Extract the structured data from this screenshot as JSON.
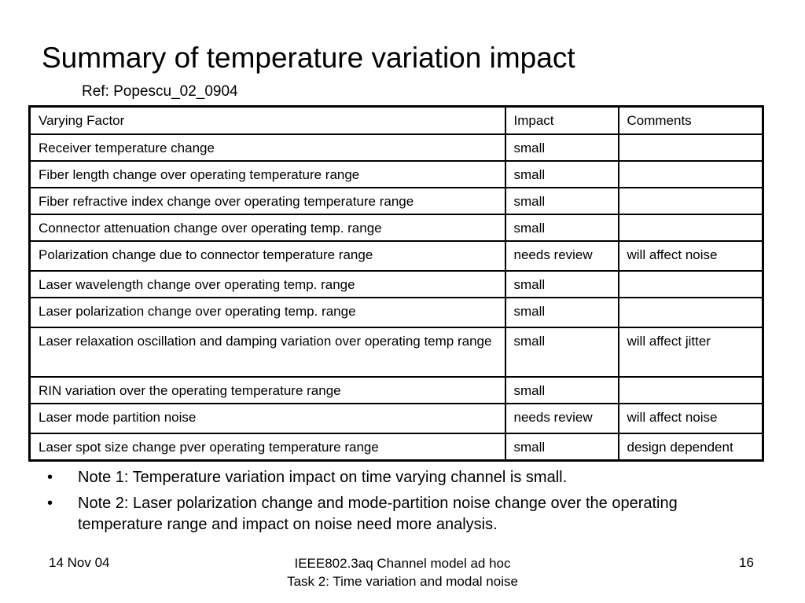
{
  "slide": {
    "title": "Summary of temperature variation impact",
    "ref": "Ref: Popescu_02_0904"
  },
  "table": {
    "headers": [
      "Varying Factor",
      "Impact",
      "Comments"
    ],
    "rows": [
      [
        "Receiver temperature change",
        "small",
        ""
      ],
      [
        "Fiber length change over operating temperature range",
        "small",
        ""
      ],
      [
        "Fiber refractive index change over operating temperature range",
        "small",
        ""
      ],
      [
        "Connector attenuation change over operating temp. range",
        "small",
        ""
      ],
      [
        "Polarization change due to connector temperature range",
        "needs review",
        "will affect noise"
      ],
      [
        "Laser wavelength change over operating temp.  range",
        "small",
        ""
      ],
      [
        "Laser polarization change over operating temp. range",
        "small",
        ""
      ],
      [
        "Laser relaxation oscillation and damping variation over operating temp range",
        "small",
        "will affect jitter"
      ],
      [
        "RIN variation over the operating temperature range",
        "small",
        ""
      ],
      [
        "Laser mode partition noise",
        "needs review",
        "will affect noise"
      ],
      [
        "Laser spot size change pver operating temperature range",
        "small",
        "design dependent"
      ]
    ]
  },
  "notes": [
    "Note 1: Temperature variation impact on time varying channel is small.",
    "Note 2: Laser polarization change and mode-partition noise change over the operating temperature range and impact on noise need more analysis."
  ],
  "bullet_glyph": "•",
  "footer": {
    "date": "14 Nov 04",
    "center_line1": "IEEE802.3aq Channel model ad hoc",
    "center_line2": "Task 2: Time variation and modal noise",
    "page_number": "16"
  }
}
